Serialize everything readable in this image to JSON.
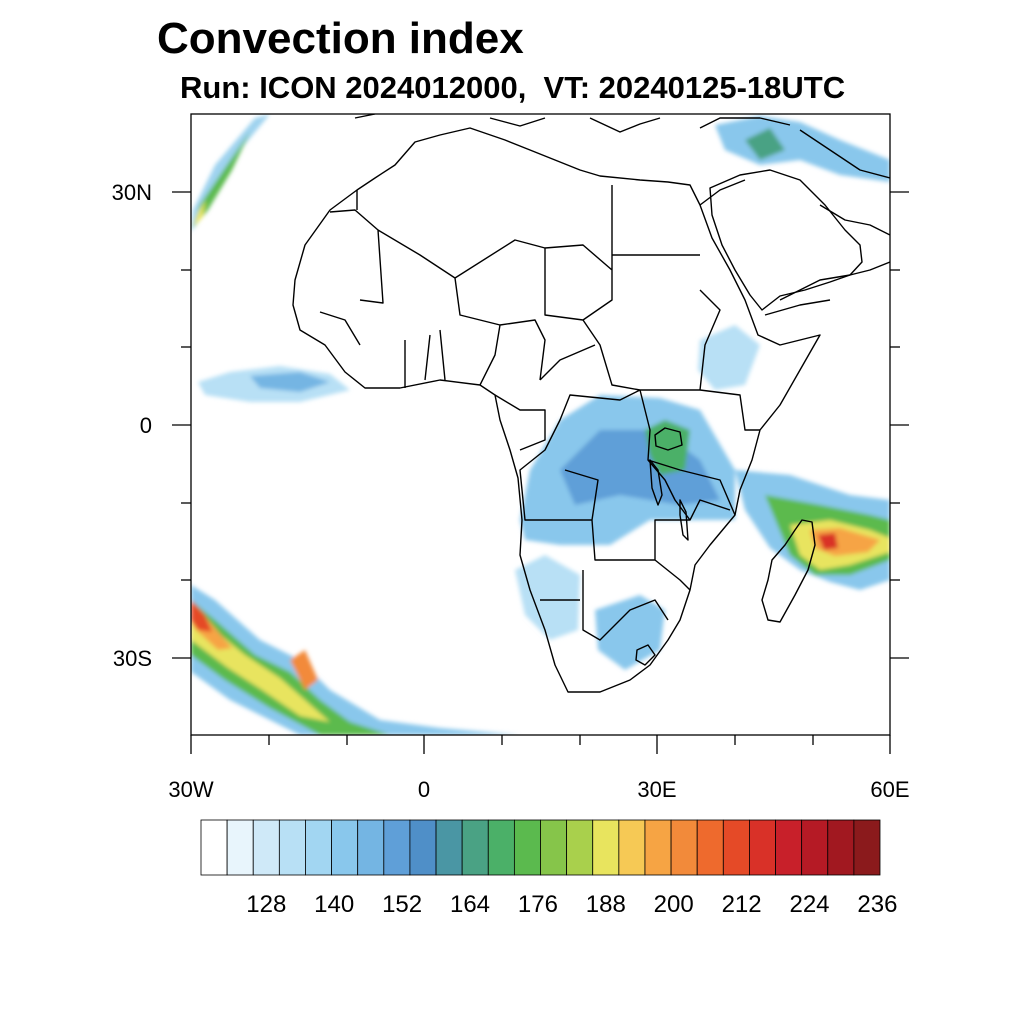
{
  "title": "Convection index",
  "subtitle": "Run: ICON 2024012000,  VT: 20240125-18UTC",
  "map": {
    "projection": "cylindrical equidistant",
    "lon_range": [
      -30,
      60
    ],
    "lat_range": [
      -40,
      40
    ],
    "lat_tick_labels": [
      "30N",
      "0",
      "30S"
    ],
    "lon_tick_labels": [
      "30W",
      "0",
      "30E",
      "60E"
    ]
  },
  "colorbar": {
    "labels": [
      "128",
      "140",
      "152",
      "164",
      "176",
      "188",
      "200",
      "212",
      "224",
      "236"
    ],
    "colors": [
      "#ffffff",
      "#e8f5fc",
      "#cfe9f8",
      "#b8e0f5",
      "#a2d6f2",
      "#89c7ec",
      "#74b5e3",
      "#5f9fd8",
      "#4f8fc8",
      "#4a96a4",
      "#4aa284",
      "#4bb068",
      "#5bba4e",
      "#86c54a",
      "#a9d04c",
      "#e8e45e",
      "#f6c955",
      "#f6a444",
      "#f28a3a",
      "#ee6a2d",
      "#e54a27",
      "#d93128",
      "#c8202a",
      "#b51a25",
      "#a11820",
      "#8b1a1c"
    ]
  },
  "chart_data": {
    "type": "heatmap",
    "title": "Convection index",
    "subtitle": "Run: ICON 2024012000,  VT: 20240125-18UTC",
    "xlabel": "",
    "ylabel": "",
    "xlim": [
      -30,
      60
    ],
    "ylim": [
      -40,
      40
    ],
    "colorbar_ticks": [
      128,
      140,
      152,
      164,
      176,
      188,
      200,
      212,
      224,
      236
    ],
    "regions_of_high_values": [
      "Southwest Indian Ocean east of Madagascar (up to ~236)",
      "South Atlantic band near 30S-40S (up to ~220)",
      "North Atlantic band near 30N (~176)",
      "Central/East Africa Congo basin and Lake Victoria (~140-176)",
      "Tropical Atlantic ITCZ near 5N (~128-152)"
    ]
  }
}
